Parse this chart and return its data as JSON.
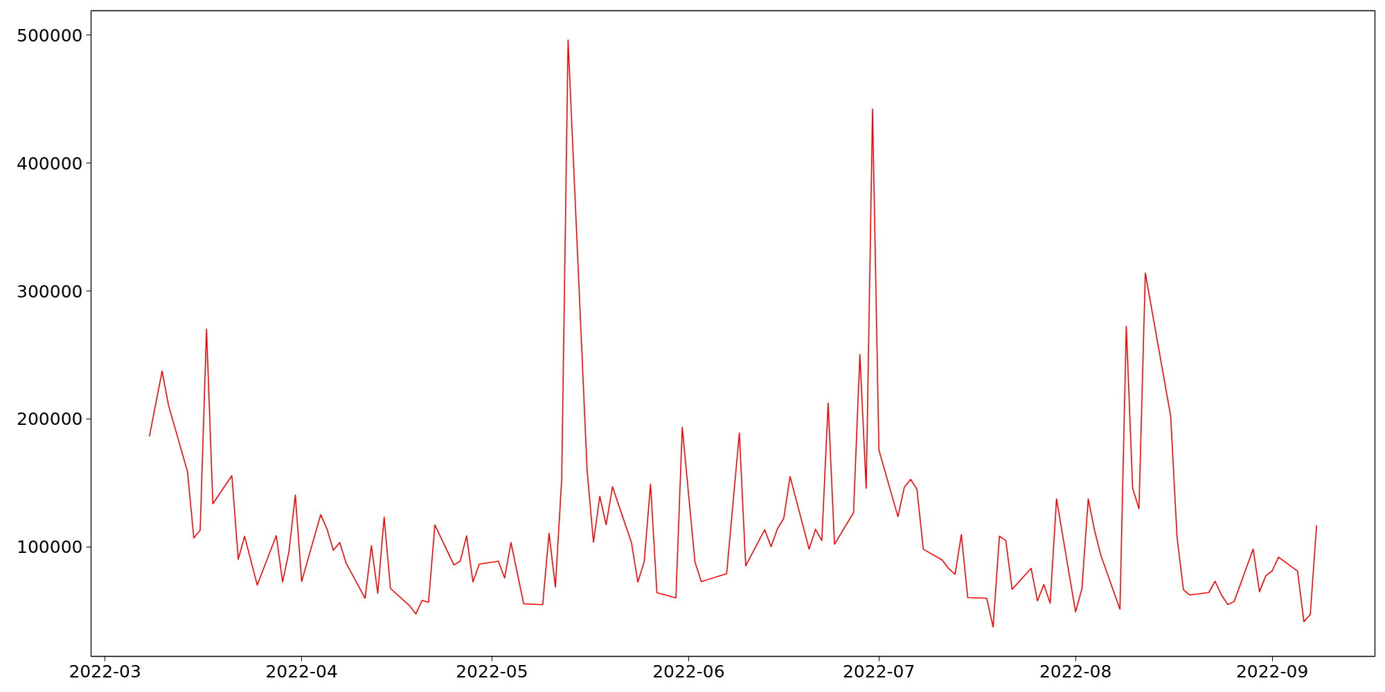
{
  "chart_data": {
    "type": "line",
    "grid": false,
    "marker": "none",
    "line_style": "solid",
    "xlim": [
      "2022-02-26T19:12",
      "2022-09-17T04:48"
    ],
    "ylim": [
      14400,
      519100
    ],
    "xticks": [
      {
        "value": "2022-03-01",
        "label": "2022-03"
      },
      {
        "value": "2022-04-01",
        "label": "2022-04"
      },
      {
        "value": "2022-05-01",
        "label": "2022-05"
      },
      {
        "value": "2022-06-01",
        "label": "2022-06"
      },
      {
        "value": "2022-07-01",
        "label": "2022-07"
      },
      {
        "value": "2022-08-01",
        "label": "2022-08"
      },
      {
        "value": "2022-09-01",
        "label": "2022-09"
      }
    ],
    "yticks": [
      100000,
      200000,
      300000,
      400000,
      500000
    ],
    "x": [
      "2022-03-08",
      "2022-03-10",
      "2022-03-11",
      "2022-03-14",
      "2022-03-15",
      "2022-03-16",
      "2022-03-17",
      "2022-03-18",
      "2022-03-21",
      "2022-03-22",
      "2022-03-23",
      "2022-03-25",
      "2022-03-28",
      "2022-03-29",
      "2022-03-30",
      "2022-03-31",
      "2022-04-01",
      "2022-04-04",
      "2022-04-05",
      "2022-04-06",
      "2022-04-07",
      "2022-04-08",
      "2022-04-11",
      "2022-04-12",
      "2022-04-13",
      "2022-04-14",
      "2022-04-15",
      "2022-04-18",
      "2022-04-19",
      "2022-04-20",
      "2022-04-21",
      "2022-04-22",
      "2022-04-25",
      "2022-04-26",
      "2022-04-27",
      "2022-04-28",
      "2022-04-29",
      "2022-05-02",
      "2022-05-03",
      "2022-05-04",
      "2022-05-06",
      "2022-05-09",
      "2022-05-10",
      "2022-05-11",
      "2022-05-12",
      "2022-05-13",
      "2022-05-16",
      "2022-05-17",
      "2022-05-18",
      "2022-05-19",
      "2022-05-20",
      "2022-05-23",
      "2022-05-24",
      "2022-05-25",
      "2022-05-26",
      "2022-05-27",
      "2022-05-30",
      "2022-05-31",
      "2022-06-02",
      "2022-06-03",
      "2022-06-07",
      "2022-06-09",
      "2022-06-10",
      "2022-06-13",
      "2022-06-14",
      "2022-06-15",
      "2022-06-16",
      "2022-06-17",
      "2022-06-20",
      "2022-06-21",
      "2022-06-22",
      "2022-06-23",
      "2022-06-24",
      "2022-06-27",
      "2022-06-28",
      "2022-06-29",
      "2022-06-30",
      "2022-07-01",
      "2022-07-04",
      "2022-07-05",
      "2022-07-06",
      "2022-07-07",
      "2022-07-08",
      "2022-07-11",
      "2022-07-12",
      "2022-07-13",
      "2022-07-14",
      "2022-07-15",
      "2022-07-18",
      "2022-07-19",
      "2022-07-20",
      "2022-07-21",
      "2022-07-22",
      "2022-07-25",
      "2022-07-26",
      "2022-07-27",
      "2022-07-28",
      "2022-07-29",
      "2022-08-01",
      "2022-08-02",
      "2022-08-03",
      "2022-08-04",
      "2022-08-05",
      "2022-08-08",
      "2022-08-09",
      "2022-08-10",
      "2022-08-11",
      "2022-08-12",
      "2022-08-16",
      "2022-08-17",
      "2022-08-18",
      "2022-08-19",
      "2022-08-22",
      "2022-08-23",
      "2022-08-24",
      "2022-08-25",
      "2022-08-26",
      "2022-08-29",
      "2022-08-30",
      "2022-08-31",
      "2022-09-01",
      "2022-09-02",
      "2022-09-05",
      "2022-09-06",
      "2022-09-07",
      "2022-09-08"
    ],
    "series": [
      {
        "color": "#ff0000",
        "values": [
          186300,
          237400,
          210800,
          158900,
          106900,
          113000,
          270300,
          133700,
          155700,
          90300,
          108300,
          70100,
          108800,
          72600,
          96400,
          140500,
          73000,
          125200,
          113900,
          97300,
          103400,
          87400,
          59800,
          100900,
          63600,
          123200,
          67400,
          54100,
          47600,
          58200,
          56600,
          117100,
          85900,
          88800,
          108600,
          72600,
          86500,
          88800,
          75700,
          103400,
          55500,
          54800,
          110600,
          68600,
          153700,
          496200,
          160000,
          103600,
          139500,
          117300,
          147000,
          103200,
          72400,
          88300,
          149000,
          64200,
          60100,
          193400,
          88300,
          72800,
          79100,
          189000,
          85200,
          113400,
          100100,
          114100,
          122300,
          155000,
          98200,
          113700,
          104900,
          212400,
          102000,
          126800,
          250300,
          145800,
          442200,
          175700,
          123600,
          146500,
          152800,
          144900,
          98200,
          89600,
          83000,
          78500,
          109600,
          60400,
          59800,
          37300,
          108300,
          105100,
          66800,
          83200,
          57800,
          70500,
          56000,
          137500,
          49200,
          67100,
          137500,
          112700,
          93200,
          51200,
          272400,
          145800,
          129800,
          314000,
          202000,
          107700,
          66500,
          62400,
          64300,
          73100,
          62400,
          54900,
          57200,
          98200,
          64900,
          77500,
          81200,
          92000,
          81000,
          41500,
          47100,
          116800
        ]
      }
    ]
  }
}
